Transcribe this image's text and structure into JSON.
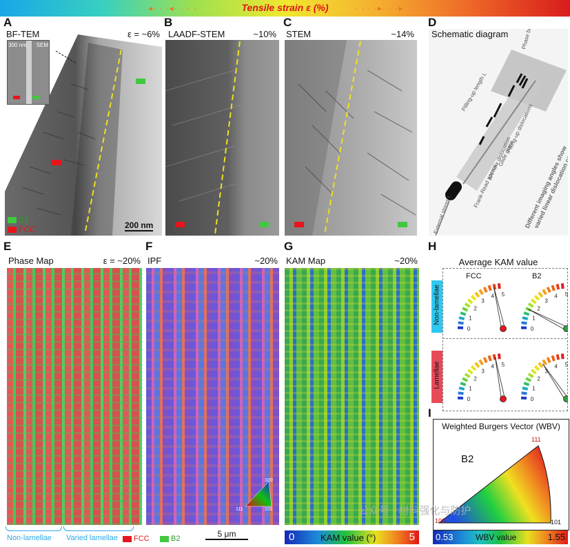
{
  "strain_bar": {
    "label": "Tensile strain ε (%)",
    "arrow_left": "◂· · ·◂· · · ·",
    "arrow_right": "· · · ·▸· · ·▸"
  },
  "panels": {
    "A": {
      "letter": "A",
      "title": "BF-TEM",
      "strain": "ε = ~6%",
      "inset_scale": "300 nm",
      "inset_label": "SEM",
      "scale": "200 nm",
      "legend": [
        {
          "label": "B2",
          "color": "#40c840"
        },
        {
          "label": "FCC",
          "color": "#e8141c"
        }
      ]
    },
    "B": {
      "letter": "B",
      "title": "LAADF-STEM",
      "strain": "~10%"
    },
    "C": {
      "letter": "C",
      "title": "STEM",
      "strain": "~14%"
    },
    "D": {
      "letter": "D",
      "title": "Schematic diagram",
      "labels": [
        "Phase boundary",
        "Pilling-up length L",
        "Pilling-up dislocations",
        "Glide plane",
        "ΔN new dislocation",
        "Frank-Read source",
        "External stress τ"
      ],
      "caption_lines": [
        "Different imaging angles show",
        "varied linear dislocation configurations"
      ]
    },
    "E": {
      "letter": "E",
      "title": "Phase Map",
      "strain": "ε = ~20%"
    },
    "F": {
      "letter": "F",
      "title": "IPF",
      "strain": "~20%",
      "ipf_labels": [
        "100",
        "111",
        "101"
      ]
    },
    "G": {
      "letter": "G",
      "title": "KAM  Map",
      "strain": "~20%",
      "bar_min": "0",
      "bar_label": "KAM value  (°)",
      "bar_max": "5"
    },
    "H": {
      "letter": "H",
      "title": "Average KAM value",
      "col_fcc": "FCC",
      "col_b2": "B2",
      "row_top": "Non-lamellae",
      "row_bottom": "Lamellae",
      "ticks": [
        "0",
        "1",
        "2",
        "3",
        "4",
        "5"
      ],
      "gauges": [
        {
          "name": "fcc-non-lamellae",
          "value": 4.3,
          "dot": "#e8141c"
        },
        {
          "name": "b2-non-lamellae",
          "value": 1.5,
          "dot": "#2ea040"
        },
        {
          "name": "fcc-lamellae",
          "value": 4.4,
          "dot": "#e8141c"
        },
        {
          "name": "b2-lamellae",
          "value": 3.1,
          "dot": "#2ea040"
        }
      ]
    },
    "I": {
      "letter": "I",
      "title": "Weighted Burgers Vector (WBV)",
      "phase": "B2",
      "corner_top": "111",
      "corner_left": "100",
      "corner_right": "101",
      "bar_min": "0.53",
      "bar_label": "WBV value",
      "bar_max": "1.55"
    }
  },
  "bottom": {
    "non_lamellae": "Non-lamellae",
    "varied_lamellae": "Varied lamellae",
    "fcc": "FCC",
    "b2": "B2",
    "scale": "5 μm"
  },
  "watermark": "公众号 · 材料强化与防护"
}
